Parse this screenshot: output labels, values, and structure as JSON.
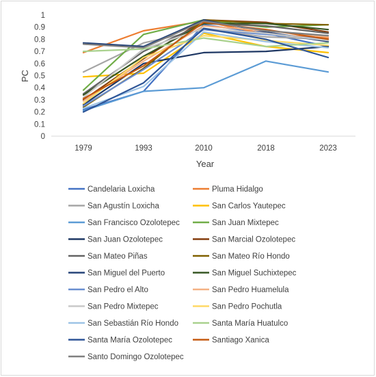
{
  "chart_data": {
    "type": "line",
    "title": "",
    "xlabel": "Year",
    "ylabel": "PC",
    "categories": [
      "1979",
      "1993",
      "2010",
      "2018",
      "2023"
    ],
    "ylim": [
      0,
      1
    ],
    "yticks": [
      "0",
      "0.1",
      "0.2",
      "0.3",
      "0.4",
      "0.5",
      "0.6",
      "0.7",
      "0.8",
      "0.9",
      "1"
    ],
    "grid": false,
    "legend_position": "bottom",
    "series": [
      {
        "name": "Candelaria Loxicha",
        "color": "#4472c4",
        "values": [
          0.22,
          0.37,
          0.92,
          0.85,
          0.74
        ]
      },
      {
        "name": "Pluma Hidalgo",
        "color": "#ed7d31",
        "values": [
          0.69,
          0.87,
          0.95,
          0.84,
          0.81
        ]
      },
      {
        "name": "San Agustín Loxicha",
        "color": "#a5a5a5",
        "values": [
          0.53,
          0.77,
          0.88,
          0.82,
          0.8
        ]
      },
      {
        "name": "San Carlos Yautepec",
        "color": "#ffc000",
        "values": [
          0.49,
          0.52,
          0.85,
          0.74,
          0.69
        ]
      },
      {
        "name": "San Francisco Ozolotepec",
        "color": "#5b9bd5",
        "values": [
          0.21,
          0.37,
          0.4,
          0.62,
          0.53
        ]
      },
      {
        "name": "San Juan Mixtepec",
        "color": "#70ad47",
        "values": [
          0.38,
          0.84,
          0.96,
          0.9,
          0.92
        ]
      },
      {
        "name": "San Juan Ozolotepec",
        "color": "#1f3864",
        "values": [
          0.26,
          0.6,
          0.69,
          0.7,
          0.74
        ]
      },
      {
        "name": "San Marcial Ozolotepec",
        "color": "#843c0c",
        "values": [
          0.3,
          0.64,
          0.96,
          0.94,
          0.86
        ]
      },
      {
        "name": "San Mateo Piñas",
        "color": "#636363",
        "values": [
          0.35,
          0.7,
          0.93,
          0.91,
          0.85
        ]
      },
      {
        "name": "San Mateo Río Hondo",
        "color": "#806000",
        "values": [
          0.24,
          0.56,
          0.96,
          0.93,
          0.92
        ]
      },
      {
        "name": "San Miguel del Puerto",
        "color": "#264478",
        "values": [
          0.77,
          0.74,
          0.96,
          0.86,
          0.78
        ]
      },
      {
        "name": "San Miguel Suchixtepec",
        "color": "#375623",
        "values": [
          0.34,
          0.66,
          0.93,
          0.93,
          0.88
        ]
      },
      {
        "name": "San Pedro el Alto",
        "color": "#698ed0",
        "values": [
          0.25,
          0.55,
          0.88,
          0.84,
          0.8
        ]
      },
      {
        "name": "San Pedro Huamelula",
        "color": "#f4b183",
        "values": [
          0.29,
          0.62,
          0.91,
          0.87,
          0.82
        ]
      },
      {
        "name": "San Pedro Mixtepec",
        "color": "#c9c9c9",
        "values": [
          0.32,
          0.72,
          0.89,
          0.85,
          0.79
        ]
      },
      {
        "name": "San Pedro Pochutla",
        "color": "#ffd966",
        "values": [
          0.27,
          0.65,
          0.83,
          0.79,
          0.75
        ]
      },
      {
        "name": "San Sebastián Río Hondo",
        "color": "#9dc3e6",
        "values": [
          0.23,
          0.41,
          0.86,
          0.78,
          0.73
        ]
      },
      {
        "name": "Santa María Huatulco",
        "color": "#a9d18e",
        "values": [
          0.7,
          0.72,
          0.81,
          0.74,
          0.77
        ]
      },
      {
        "name": "Santa María Ozolotepec",
        "color": "#2e5597",
        "values": [
          0.2,
          0.44,
          0.89,
          0.8,
          0.65
        ]
      },
      {
        "name": "Santiago Xanica",
        "color": "#c55a11",
        "values": [
          0.31,
          0.58,
          0.94,
          0.88,
          0.8
        ]
      },
      {
        "name": "Santo Domingo Ozolotepec",
        "color": "#7f7f7f",
        "values": [
          0.76,
          0.73,
          0.95,
          0.87,
          0.83
        ]
      }
    ]
  }
}
